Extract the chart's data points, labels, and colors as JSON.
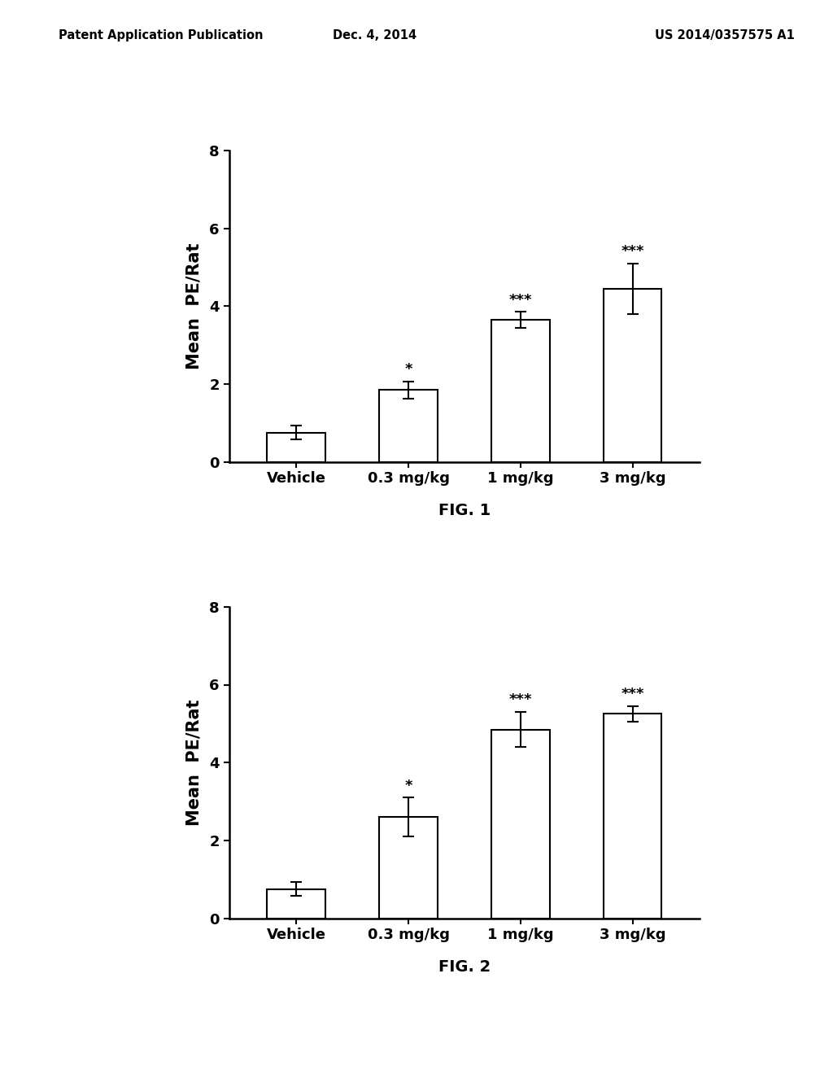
{
  "fig1": {
    "categories": [
      "Vehicle",
      "0.3 mg/kg",
      "1 mg/kg",
      "3 mg/kg"
    ],
    "values": [
      0.75,
      1.85,
      3.65,
      4.45
    ],
    "errors": [
      0.18,
      0.22,
      0.2,
      0.65
    ],
    "significance": [
      "",
      "*",
      "***",
      "***"
    ],
    "ylabel": "Mean  PE/Rat",
    "ylim": [
      0,
      8
    ],
    "yticks": [
      0,
      2,
      4,
      6,
      8
    ],
    "fig_label": "FIG. 1"
  },
  "fig2": {
    "categories": [
      "Vehicle",
      "0.3 mg/kg",
      "1 mg/kg",
      "3 mg/kg"
    ],
    "values": [
      0.75,
      2.6,
      4.85,
      5.25
    ],
    "errors": [
      0.18,
      0.5,
      0.45,
      0.2
    ],
    "significance": [
      "",
      "*",
      "***",
      "***"
    ],
    "ylabel": "Mean  PE/Rat",
    "ylim": [
      0,
      8
    ],
    "yticks": [
      0,
      2,
      4,
      6,
      8
    ],
    "fig_label": "FIG. 2"
  },
  "header_left": "Patent Application Publication",
  "header_center": "Dec. 4, 2014",
  "header_right": "US 2014/0357575 A1",
  "background_color": "#ffffff",
  "bar_color": "#ffffff",
  "bar_edgecolor": "#000000",
  "bar_linewidth": 1.5,
  "error_linewidth": 1.5,
  "axis_linewidth": 1.8,
  "tick_fontsize": 13,
  "ylabel_fontsize": 15,
  "sig_fontsize": 13,
  "xlabel_fontsize": 13,
  "figlabel_fontsize": 14
}
